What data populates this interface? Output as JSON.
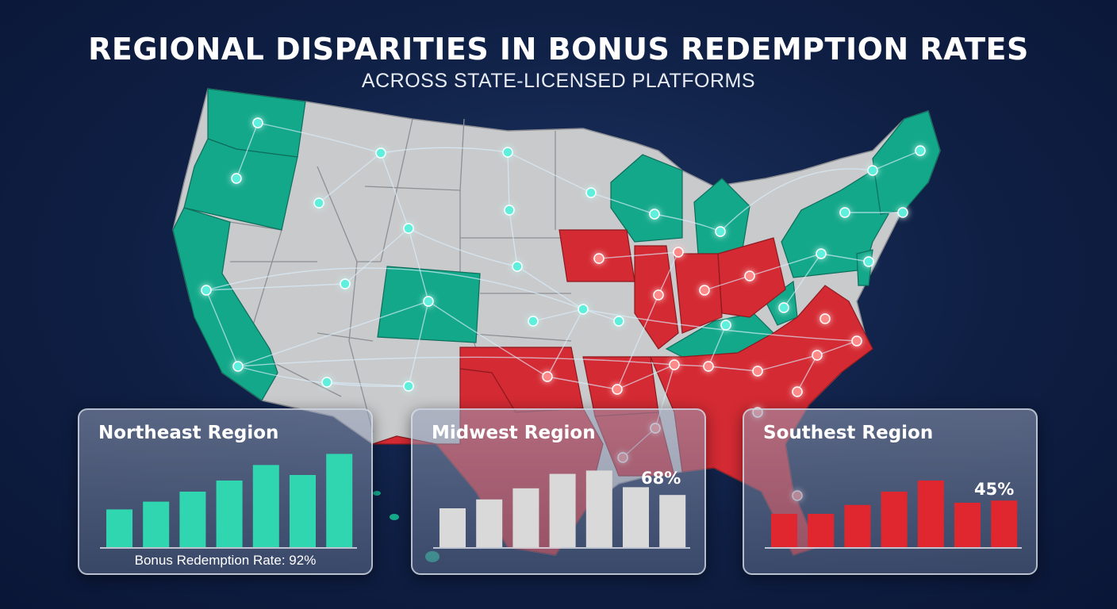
{
  "title": "REGIONAL DISPARITIES IN BONUS REDEMPTION RATES",
  "subtitle": "ACROSS STATE-LICENSED PLATFORMS",
  "colors": {
    "background": "#10224a",
    "high_rate_states": "#14a88a",
    "low_rate_states": "#d42a33",
    "neutral_states": "#c9cacc",
    "node": "#5ff0dd",
    "node_red": "#ff8a8a",
    "bar_teal": "#2fd6b0",
    "bar_gray": "#d9d9d9",
    "bar_red": "#e0262f"
  },
  "map": {
    "teal_states": [
      "Washington",
      "Oregon",
      "California",
      "Colorado",
      "Wisconsin",
      "Michigan",
      "Kentucky",
      "New York",
      "Pennsylvania",
      "New Jersey",
      "Vermont",
      "New Hampshire",
      "Maine",
      "Massachusetts",
      "West Virginia"
    ],
    "red_states": [
      "Iowa",
      "Illinois",
      "Indiana",
      "Ohio",
      "Oklahoma",
      "Arkansas",
      "Texas",
      "Louisiana",
      "Tennessee",
      "Mississippi",
      "Alabama",
      "Georgia",
      "South Carolina",
      "North Carolina",
      "Virginia",
      "Florida"
    ]
  },
  "panels": [
    {
      "id": "northeast",
      "title": "Northeast Region",
      "bar_color": "#2fd6b0",
      "bar_values": [
        0.34,
        0.41,
        0.5,
        0.6,
        0.74,
        0.65,
        0.84
      ],
      "footer": "Bonus Redemption Rate: 92%",
      "pct": ""
    },
    {
      "id": "midwest",
      "title": "Midwest Region",
      "bar_color": "#d9d9d9",
      "bar_values": [
        0.35,
        0.43,
        0.53,
        0.66,
        0.69,
        0.54,
        0.47
      ],
      "footer": "",
      "pct": "68%"
    },
    {
      "id": "southeast",
      "title": "Southest Region",
      "bar_color": "#e0262f",
      "bar_values": [
        0.3,
        0.3,
        0.38,
        0.5,
        0.6,
        0.4,
        0.42
      ],
      "footer": "",
      "pct": "45%"
    }
  ]
}
